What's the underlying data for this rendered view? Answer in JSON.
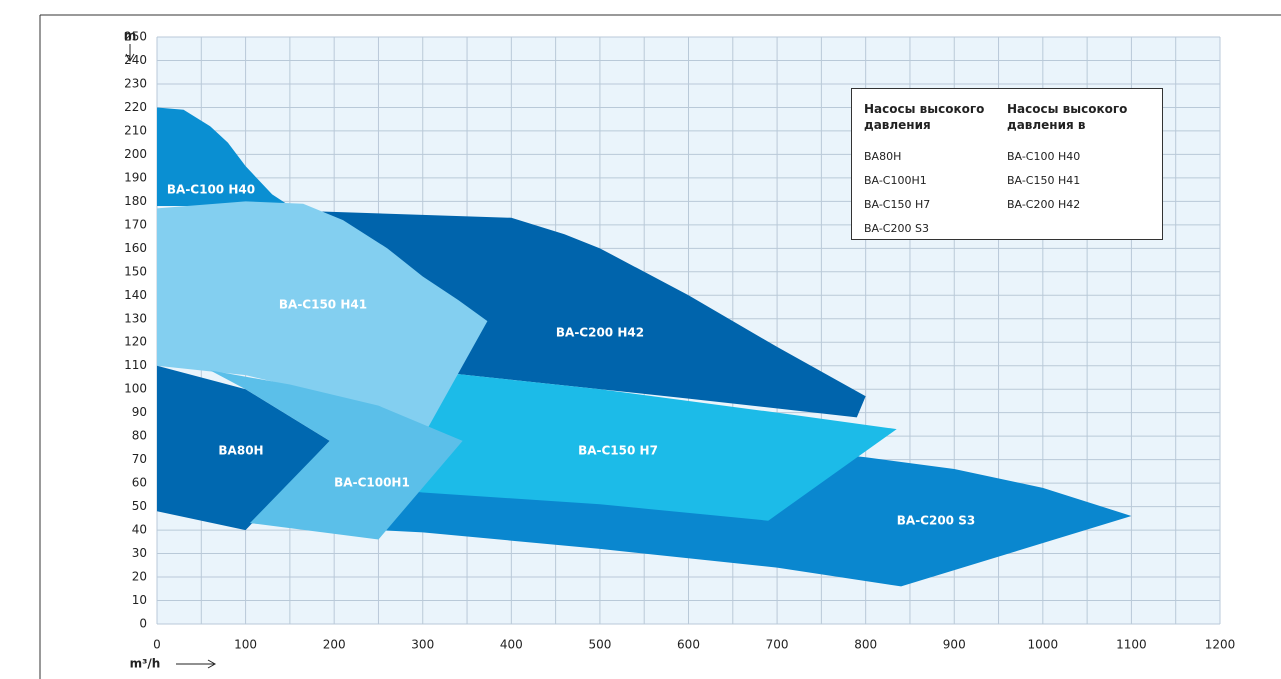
{
  "chart_data": {
    "type": "area",
    "y_label": "m",
    "x_label": "m³/h",
    "xlim": [
      0,
      1200
    ],
    "ylim": [
      0,
      250
    ],
    "xticks": [
      0,
      100,
      200,
      300,
      400,
      500,
      600,
      700,
      800,
      900,
      1000,
      1100,
      1200
    ],
    "xminorticks": [
      50,
      150,
      250,
      350,
      450,
      550,
      650,
      750,
      850,
      950,
      1050,
      1150
    ],
    "yticks": [
      0,
      10,
      20,
      30,
      40,
      50,
      60,
      70,
      80,
      90,
      100,
      110,
      120,
      130,
      140,
      150,
      160,
      170,
      180,
      190,
      200,
      210,
      220,
      230,
      240,
      250
    ],
    "grid": true,
    "series": [
      {
        "name": "BA-C200 S3",
        "color": "#0a87cf",
        "x": [
          100,
          300,
          500,
          700,
          840,
          1100,
          1000,
          900,
          800,
          700,
          500,
          345
        ],
        "y": [
          43,
          39,
          32,
          24,
          16,
          46,
          58,
          66,
          71,
          75,
          80,
          78
        ]
      },
      {
        "name": "BA-C200 H42",
        "color": "#0064ac",
        "x": [
          160,
          400,
          460,
          500,
          600,
          700,
          800,
          790,
          600,
          400,
          300,
          160
        ],
        "y": [
          176,
          173,
          166,
          160,
          140,
          118,
          97,
          88,
          96,
          104,
          108,
          120
        ]
      },
      {
        "name": "BA-C100 H40",
        "color": "#0a8fd2",
        "x": [
          0,
          30,
          60,
          80,
          100,
          130,
          150,
          0
        ],
        "y": [
          220,
          219,
          212,
          205,
          195,
          183,
          178,
          178
        ]
      },
      {
        "name": "BA-C150 H7",
        "color": "#1cbbe8",
        "x": [
          250,
          500,
          700,
          835,
          690,
          500,
          300,
          250
        ],
        "y": [
          110,
          100,
          90,
          83,
          44,
          51,
          56,
          58
        ]
      },
      {
        "name": "BA-C150 H41",
        "color": "#83cff0",
        "x": [
          0,
          100,
          165,
          210,
          260,
          300,
          340,
          373,
          305,
          200,
          100,
          0
        ],
        "y": [
          177,
          180,
          179,
          172,
          160,
          148,
          138,
          129,
          83,
          97,
          106,
          110
        ]
      },
      {
        "name": "BA80H",
        "color": "#0068b0",
        "x": [
          0,
          100,
          195,
          100,
          0
        ],
        "y": [
          110,
          100,
          78,
          40,
          48
        ]
      },
      {
        "name": "BA-C100H1",
        "color": "#5bbfe9",
        "x": [
          60,
          150,
          250,
          345,
          250,
          105,
          195,
          100
        ],
        "y": [
          108,
          102,
          93,
          78,
          36,
          43,
          78,
          100
        ]
      }
    ],
    "legend": {
      "columns": [
        {
          "title": "Насосы высокого давления",
          "items": [
            "BA80H",
            "BA-C100H1",
            "BA-C150 H7",
            "BA-C200 S3"
          ]
        },
        {
          "title": "Насосы высокого давления в",
          "items": [
            "BA-C100 H40",
            "BA-C150 H41",
            "BA-C200 H42"
          ]
        }
      ]
    }
  }
}
